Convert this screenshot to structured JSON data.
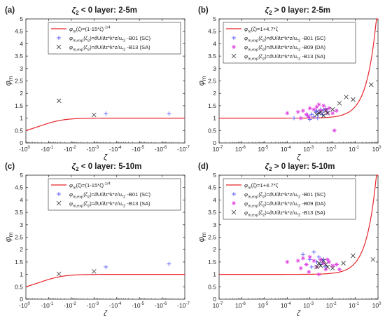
{
  "chart_data": [
    {
      "type": "line",
      "panel_label": "(a)",
      "title_sym": "ζ",
      "title_sub": "2",
      "title_rest": " < 0   layer: 2-5m",
      "xlabel": "ζ",
      "ylabel_main": "φ",
      "ylabel_sub": "m",
      "x_scale": "symlog-negative",
      "x_ticks": [
        "-10",
        "-10",
        "-10",
        "-10",
        "-10",
        "-10",
        "-10",
        "-10"
      ],
      "x_tick_exps": [
        "0",
        "-1",
        "-2",
        "-3",
        "-4",
        "-5",
        "-6",
        "-7"
      ],
      "xlim_log10": [
        0,
        -7
      ],
      "y_ticks": [
        "0",
        "0.5",
        "1",
        "1.5",
        "2",
        "2.5",
        "3",
        "3.5",
        "4",
        "4.5",
        "5"
      ],
      "ylim": [
        0,
        5
      ],
      "grid": false,
      "legend_position": "top-right",
      "curve": {
        "name": "φ_m(ζ)=(1-15*ζ)^(-1/4)",
        "color": "#e8262b"
      },
      "legend": [
        {
          "main": "φ",
          "sub": "m",
          "text": "(ζ)=(1-15*ζ)",
          "sup": "-1/4",
          "marker": "line",
          "color": "#e8262b"
        },
        {
          "main": "φ",
          "sub": "m,exp",
          "text": "(ζ",
          "sub2": "2",
          "text2": ")=∂U/∂z*k*z/u",
          "sub3": "*2",
          "text3": " -B01 (SC)",
          "marker": "plus",
          "color": "#5a5aff"
        },
        {
          "main": "φ",
          "sub": "m,exp",
          "text": "(ζ",
          "sub2": "2",
          "text2": ")=∂U/∂z*k*z/u",
          "sub3": "*2",
          "text3": " -B13 (SA)",
          "marker": "x",
          "color": "#333333"
        }
      ],
      "series": [
        {
          "marker": "x",
          "color": "#333333",
          "points": [
            [
              -0.035,
              1.7
            ],
            [
              -0.001,
              1.13
            ]
          ]
        },
        {
          "marker": "plus",
          "color": "#5a5aff",
          "points": [
            [
              -0.0003,
              1.18
            ],
            [
              -5e-07,
              1.18
            ]
          ]
        }
      ]
    },
    {
      "type": "line",
      "panel_label": "(b)",
      "title_sym": "ζ",
      "title_sub": "2",
      "title_rest": " > 0   layer: 2-5m",
      "xlabel": "ζ",
      "ylabel_main": "φ",
      "ylabel_sub": "m",
      "x_scale": "log",
      "x_ticks": [
        "10",
        "10",
        "10",
        "10",
        "10",
        "10",
        "10",
        "10"
      ],
      "x_tick_exps": [
        "-7",
        "-6",
        "-5",
        "-4",
        "-3",
        "-2",
        "-1",
        "0"
      ],
      "xlim_log10": [
        -7,
        0
      ],
      "y_ticks": [
        "0",
        "0.5",
        "1",
        "1.5",
        "2",
        "2.5",
        "3",
        "3.5",
        "4",
        "4.5",
        "5"
      ],
      "ylim": [
        0,
        5
      ],
      "grid": false,
      "legend_position": "top-left",
      "curve": {
        "name": "φ_m(ζ)=1+4.7*ζ",
        "color": "#e8262b"
      },
      "legend": [
        {
          "main": "φ",
          "sub": "m",
          "text": "(ζ)=1+4.7*ζ",
          "marker": "line",
          "color": "#e8262b"
        },
        {
          "main": "φ",
          "sub": "m,exp",
          "text": "(ζ",
          "sub2": "2",
          "text2": ")=∂U/∂z*k*z/u",
          "sub3": "*2",
          "text3": " -B01 (SC)",
          "marker": "plus",
          "color": "#5a5aff"
        },
        {
          "main": "φ",
          "sub": "m,exp",
          "text": "(ζ",
          "sub2": "2",
          "text2": ")=∂U/∂z*k*z/u",
          "sub3": "*2",
          "text3": " -B09 (DA)",
          "marker": "star",
          "color": "#e040e0"
        },
        {
          "main": "φ",
          "sub": "m,exp",
          "text": "(ζ",
          "sub2": "2",
          "text2": ")=∂U/∂z*k*z/u",
          "sub3": "*2",
          "text3": " -B13 (SA)",
          "marker": "x",
          "color": "#333333"
        }
      ],
      "series": [
        {
          "marker": "plus",
          "color": "#5a5aff",
          "points": [
            [
              0.0002,
              1.0
            ],
            [
              0.0008,
              1.1
            ],
            [
              0.001,
              0.95
            ],
            [
              0.0012,
              1.15
            ],
            [
              0.0015,
              1.05
            ],
            [
              0.0018,
              1.25
            ],
            [
              0.002,
              1.3
            ],
            [
              0.0025,
              1.2
            ],
            [
              0.003,
              1.35
            ],
            [
              0.004,
              1.3
            ],
            [
              0.005,
              1.4
            ],
            [
              0.006,
              1.25
            ],
            [
              0.0022,
              1.0
            ],
            [
              0.0035,
              1.15
            ]
          ]
        },
        {
          "marker": "star",
          "color": "#e040e0",
          "points": [
            [
              0.0001,
              1.2
            ],
            [
              0.0003,
              1.25
            ],
            [
              0.0005,
              1.3
            ],
            [
              0.0007,
              1.15
            ],
            [
              0.001,
              1.4
            ],
            [
              0.0015,
              1.35
            ],
            [
              0.002,
              1.45
            ],
            [
              0.003,
              1.3
            ],
            [
              0.004,
              1.5
            ],
            [
              0.005,
              1.35
            ],
            [
              0.007,
              1.4
            ],
            [
              0.01,
              1.2
            ],
            [
              0.012,
              0.5
            ],
            [
              0.015,
              1.3
            ],
            [
              0.0009,
              1.05
            ],
            [
              0.0025,
              1.55
            ],
            [
              0.006,
              1.2
            ],
            [
              0.0004,
              1.0
            ]
          ]
        },
        {
          "marker": "x",
          "color": "#333333",
          "points": [
            [
              0.002,
              1.15
            ],
            [
              0.0025,
              1.2
            ],
            [
              0.003,
              1.25
            ],
            [
              0.004,
              1.1
            ],
            [
              0.005,
              1.3
            ],
            [
              0.006,
              1.2
            ],
            [
              0.01,
              1.35
            ],
            [
              0.02,
              1.6
            ],
            [
              0.04,
              1.85
            ],
            [
              0.08,
              1.75
            ],
            [
              0.5,
              2.35
            ]
          ]
        }
      ]
    },
    {
      "type": "line",
      "panel_label": "(c)",
      "title_sym": "ζ",
      "title_sub": "2",
      "title_rest": " < 0   layer: 5-10m",
      "xlabel": "ζ",
      "ylabel_main": "φ",
      "ylabel_sub": "m",
      "x_scale": "symlog-negative",
      "x_ticks": [
        "-10",
        "-10",
        "-10",
        "-10",
        "-10",
        "-10",
        "-10",
        "-10"
      ],
      "x_tick_exps": [
        "0",
        "-1",
        "-2",
        "-3",
        "-4",
        "-5",
        "-6",
        "-7"
      ],
      "xlim_log10": [
        0,
        -7
      ],
      "y_ticks": [
        "0",
        "0.5",
        "1",
        "1.5",
        "2",
        "2.5",
        "3",
        "3.5",
        "4",
        "4.5",
        "5"
      ],
      "ylim": [
        0,
        5
      ],
      "grid": false,
      "legend_position": "top-right",
      "curve": {
        "name": "φ_m(ζ)=(1-15*ζ)^(-1/4)",
        "color": "#e8262b"
      },
      "legend": [
        {
          "main": "φ",
          "sub": "m",
          "text": "(ζ)=(1-15*ζ)",
          "sup": "-1/4",
          "marker": "line",
          "color": "#e8262b"
        },
        {
          "main": "φ",
          "sub": "m,exp",
          "text": "(ζ",
          "sub2": "2",
          "text2": ")=∂U/∂z*k*z/u",
          "sub3": "*2",
          "text3": " -B01 (SC)",
          "marker": "plus",
          "color": "#5a5aff"
        },
        {
          "main": "φ",
          "sub": "m,exp",
          "text": "(ζ",
          "sub2": "2",
          "text2": ")=∂U/∂z*k*z/u",
          "sub3": "*2",
          "text3": " -B13 (SA)",
          "marker": "x",
          "color": "#333333"
        }
      ],
      "series": [
        {
          "marker": "x",
          "color": "#333333",
          "points": [
            [
              -0.035,
              1.02
            ],
            [
              -0.001,
              1.12
            ]
          ]
        },
        {
          "marker": "plus",
          "color": "#5a5aff",
          "points": [
            [
              -0.0003,
              1.3
            ],
            [
              -5e-07,
              1.42
            ]
          ]
        }
      ]
    },
    {
      "type": "line",
      "panel_label": "(d)",
      "title_sym": "ζ",
      "title_sub": "2",
      "title_rest": " > 0   layer: 5-10m",
      "xlabel": "ζ",
      "ylabel_main": "φ",
      "ylabel_sub": "m",
      "x_scale": "log",
      "x_ticks": [
        "10",
        "10",
        "10",
        "10",
        "10",
        "10",
        "10",
        "10"
      ],
      "x_tick_exps": [
        "-7",
        "-6",
        "-5",
        "-4",
        "-3",
        "-2",
        "-1",
        "0"
      ],
      "xlim_log10": [
        -7,
        0
      ],
      "y_ticks": [
        "0",
        "0.5",
        "1",
        "1.5",
        "2",
        "2.5",
        "3",
        "3.5",
        "4",
        "4.5",
        "5"
      ],
      "ylim": [
        0,
        5
      ],
      "grid": false,
      "legend_position": "top-left",
      "curve": {
        "name": "φ_m(ζ)=1+4.7*ζ",
        "color": "#e8262b"
      },
      "legend": [
        {
          "main": "φ",
          "sub": "m",
          "text": "(ζ)=1+4.7*ζ",
          "marker": "line",
          "color": "#e8262b"
        },
        {
          "main": "φ",
          "sub": "m,exp",
          "text": "(ζ",
          "sub2": "2",
          "text2": ")=∂U/∂z*k*z/u",
          "sub3": "*2",
          "text3": " -B01 (SC)",
          "marker": "plus",
          "color": "#5a5aff"
        },
        {
          "main": "φ",
          "sub": "m,exp",
          "text": "(ζ",
          "sub2": "2",
          "text2": ")=∂U/∂z*k*z/u",
          "sub3": "*2",
          "text3": " -B09 (DA)",
          "marker": "star",
          "color": "#e040e0"
        },
        {
          "main": "φ",
          "sub": "m,exp",
          "text": "(ζ",
          "sub2": "2",
          "text2": ")=∂U/∂z*k*z/u",
          "sub3": "*2",
          "text3": " -B13 (SA)",
          "marker": "x",
          "color": "#333333"
        }
      ],
      "series": [
        {
          "marker": "plus",
          "color": "#5a5aff",
          "points": [
            [
              0.0005,
              1.8
            ],
            [
              0.001,
              1.6
            ],
            [
              0.0015,
              1.9
            ],
            [
              0.002,
              1.5
            ],
            [
              0.0025,
              1.7
            ],
            [
              0.003,
              1.4
            ],
            [
              0.004,
              1.6
            ],
            [
              0.005,
              1.3
            ],
            [
              0.0012,
              1.3
            ],
            [
              0.0035,
              1.55
            ]
          ]
        },
        {
          "marker": "star",
          "color": "#e040e0",
          "points": [
            [
              0.0001,
              1.5
            ],
            [
              0.0003,
              1.55
            ],
            [
              0.0005,
              1.65
            ],
            [
              0.0007,
              1.4
            ],
            [
              0.001,
              1.7
            ],
            [
              0.0015,
              1.55
            ],
            [
              0.002,
              1.3
            ],
            [
              0.003,
              1.6
            ],
            [
              0.004,
              1.45
            ],
            [
              0.005,
              1.2
            ],
            [
              0.007,
              1.5
            ],
            [
              0.01,
              1.35
            ],
            [
              0.015,
              1.4
            ],
            [
              0.02,
              1.2
            ],
            [
              0.0009,
              1.1
            ],
            [
              0.0025,
              1.0
            ],
            [
              0.006,
              1.6
            ],
            [
              0.0004,
              1.25
            ]
          ]
        },
        {
          "marker": "x",
          "color": "#333333",
          "points": [
            [
              0.002,
              1.3
            ],
            [
              0.0025,
              1.45
            ],
            [
              0.003,
              1.35
            ],
            [
              0.004,
              1.55
            ],
            [
              0.005,
              1.4
            ],
            [
              0.006,
              1.3
            ],
            [
              0.01,
              1.25
            ],
            [
              0.03,
              1.45
            ],
            [
              0.08,
              1.75
            ],
            [
              0.6,
              1.6
            ]
          ]
        }
      ]
    }
  ]
}
